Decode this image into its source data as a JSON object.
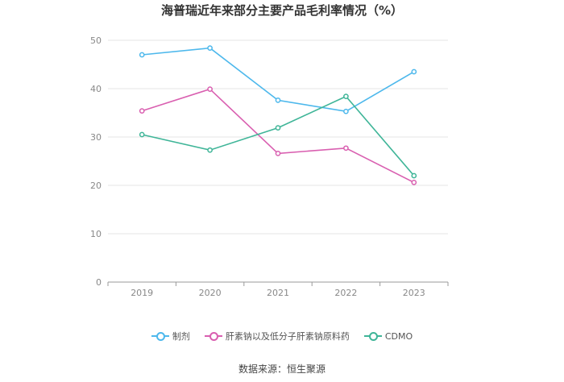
{
  "chart_data": {
    "type": "line",
    "title": "海普瑞近年来部分主要产品毛利率情况（%）",
    "categories": [
      "2019",
      "2020",
      "2021",
      "2022",
      "2023"
    ],
    "ylim": [
      0,
      50
    ],
    "yticks": [
      "0",
      "10",
      "20",
      "30",
      "40",
      "50"
    ],
    "grid": true,
    "legend_position": "bottom",
    "series": [
      {
        "name": "制剂",
        "color": "#4db8ec",
        "values": [
          47.0,
          48.4,
          37.6,
          35.3,
          43.5
        ]
      },
      {
        "name": "肝素钠以及低分子肝素钠原料药",
        "color": "#d95fb0",
        "values": [
          35.4,
          39.9,
          26.6,
          27.7,
          20.6
        ]
      },
      {
        "name": "CDMO",
        "color": "#3fb598",
        "values": [
          30.5,
          27.3,
          31.9,
          38.4,
          22.0
        ]
      }
    ],
    "source": "数据来源：恒生聚源"
  }
}
